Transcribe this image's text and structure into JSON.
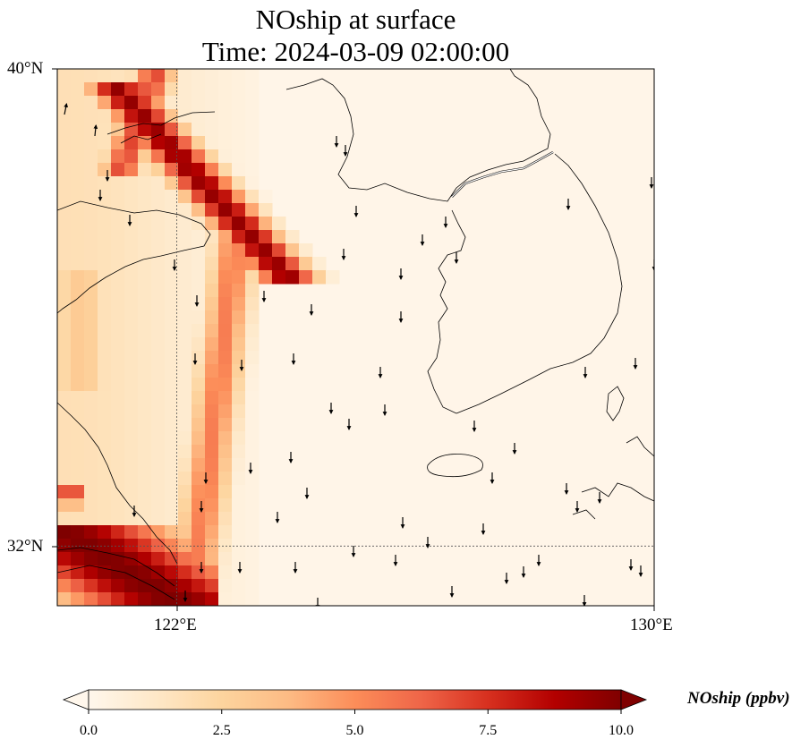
{
  "title": {
    "line1": "NOship at surface",
    "line2": "Time: 2024-03-09 02:00:00"
  },
  "axes": {
    "lat_labels": [
      "40°N",
      "32°N"
    ],
    "lon_labels": [
      "122°E",
      "130°E"
    ],
    "lat_values": [
      40,
      32
    ],
    "lon_values": [
      122,
      130
    ],
    "extent": {
      "lon_min": 120,
      "lon_max": 130,
      "lat_min": 31,
      "lat_max": 40
    }
  },
  "colorbar": {
    "label": "NOship (ppbv)",
    "min": 0.0,
    "max": 10.0,
    "ticks": [
      "0.0",
      "2.5",
      "5.0",
      "7.5",
      "10.0"
    ],
    "tick_values": [
      0,
      2.5,
      5,
      7.5,
      10
    ],
    "colormap": "OrRd",
    "extend": "both"
  },
  "field": {
    "variable": "NOship",
    "units": "ppbv",
    "level": "surface"
  }
}
